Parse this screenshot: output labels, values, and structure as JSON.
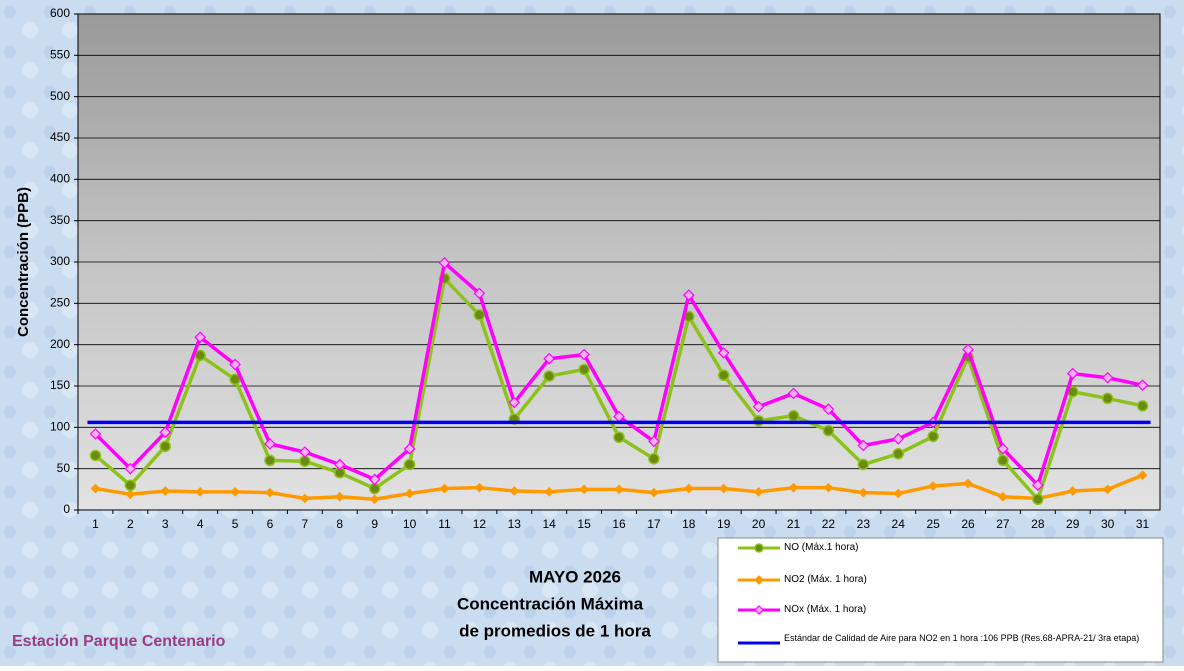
{
  "chart_data": {
    "type": "line",
    "title": "MAYO 2026",
    "subtitle": [
      "Concentración Máxima",
      "de promedios de 1 hora"
    ],
    "annotations": [
      "Estación Parque Centenario"
    ],
    "ylabel": "Concentración  (PPB)",
    "categories": [
      "1",
      "2",
      "3",
      "4",
      "5",
      "6",
      "7",
      "8",
      "9",
      "10",
      "11",
      "12",
      "13",
      "14",
      "15",
      "16",
      "17",
      "18",
      "19",
      "20",
      "21",
      "22",
      "23",
      "24",
      "25",
      "26",
      "27",
      "28",
      "29",
      "30",
      "31"
    ],
    "series": [
      {
        "name": "NO (Máx.1 hora)",
        "color": "#8cc21a",
        "marker": "circle",
        "values": [
          66,
          30,
          77,
          187,
          158,
          60,
          59,
          45,
          26,
          55,
          280,
          236,
          110,
          162,
          170,
          88,
          62,
          234,
          163,
          108,
          114,
          96,
          55,
          68,
          89,
          185,
          60,
          13,
          143,
          135,
          126
        ]
      },
      {
        "name": "NO2 (Máx. 1 hora)",
        "color": "#ff9900",
        "marker": "diamond",
        "values": [
          26,
          19,
          23,
          22,
          22,
          21,
          14,
          16,
          13,
          20,
          26,
          27,
          23,
          22,
          25,
          25,
          21,
          26,
          26,
          22,
          27,
          27,
          21,
          20,
          29,
          32,
          16,
          14,
          23,
          25,
          42
        ]
      },
      {
        "name": "NOx (Máx. 1 hora)",
        "color": "#ff00ff",
        "marker": "diamond",
        "values": [
          92,
          50,
          94,
          209,
          176,
          80,
          70,
          55,
          37,
          74,
          299,
          262,
          130,
          183,
          188,
          113,
          83,
          260,
          190,
          125,
          141,
          122,
          78,
          86,
          106,
          194,
          74,
          30,
          165,
          160,
          151
        ]
      },
      {
        "name": "Estándar de Calidad de Aire para NO2 en 1 hora :106 PPB (Res.68-APRA-21/ 3ra etapa)",
        "color": "#0000ee",
        "marker": "none",
        "values": [
          106,
          106,
          106,
          106,
          106,
          106,
          106,
          106,
          106,
          106,
          106,
          106,
          106,
          106,
          106,
          106,
          106,
          106,
          106,
          106,
          106,
          106,
          106,
          106,
          106,
          106,
          106,
          106,
          106,
          106,
          106
        ]
      }
    ],
    "ylim": [
      0,
      600
    ],
    "yticks": [
      0,
      50,
      100,
      150,
      200,
      250,
      300,
      350,
      400,
      450,
      500,
      550,
      600
    ],
    "grid": true
  }
}
